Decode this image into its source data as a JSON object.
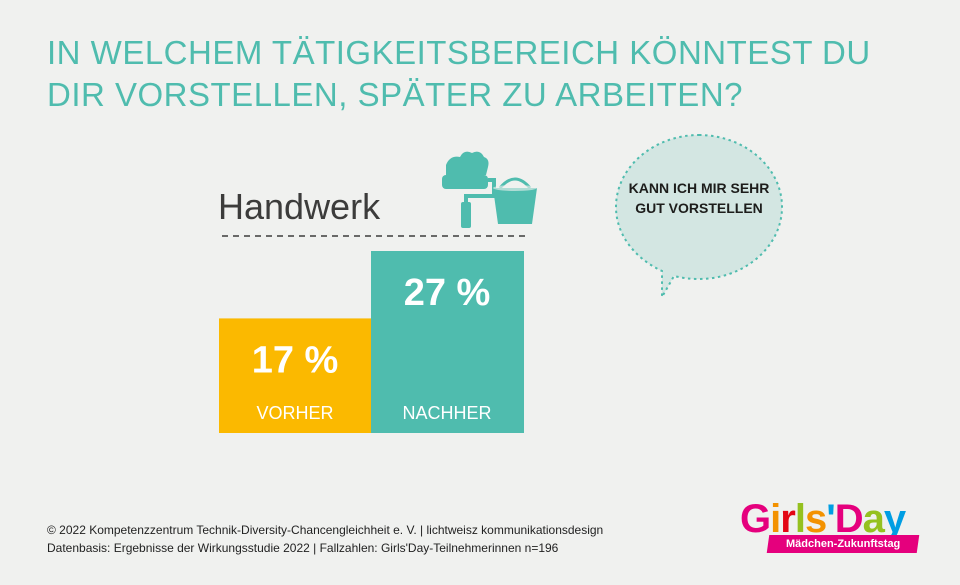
{
  "title": "IN WELCHEM TÄTIGKEITSBEREICH KÖNNTEST DU DIR VORSTELLEN, SPÄTER ZU ARBEITEN?",
  "category": "Handwerk",
  "icons": [
    "paint-roller-icon",
    "bucket-icon"
  ],
  "bubble": {
    "text": "KANN ICH MIR SEHR GUT VORSTELLEN",
    "icon": "speech-bubble-icon"
  },
  "footer": {
    "line1": "© 2022  Kompetenzzentrum Technik-Diversity-Chancengleichheit e. V. | lichtweisz kommunikationsdesign",
    "line2": "Datenbasis: Ergebnisse der Wirkungsstudie 2022 | Fallzahlen: Girls'Day-Teilnehmerinnen n=196"
  },
  "logo": {
    "word": "Girls'Day",
    "tagline": "Mädchen-Zukunftstag"
  },
  "colors": {
    "accent": "#4fbcae",
    "vorher": "#fbb900",
    "nachher": "#4fbcae",
    "background": "#f0f1ef"
  },
  "chart_data": {
    "type": "bar",
    "title": "Handwerk",
    "categories": [
      "VORHER",
      "NACHHER"
    ],
    "values": [
      17,
      27
    ],
    "labels": [
      "17 %",
      "27 %"
    ],
    "unit": "%",
    "ylim": [
      0,
      27
    ]
  }
}
